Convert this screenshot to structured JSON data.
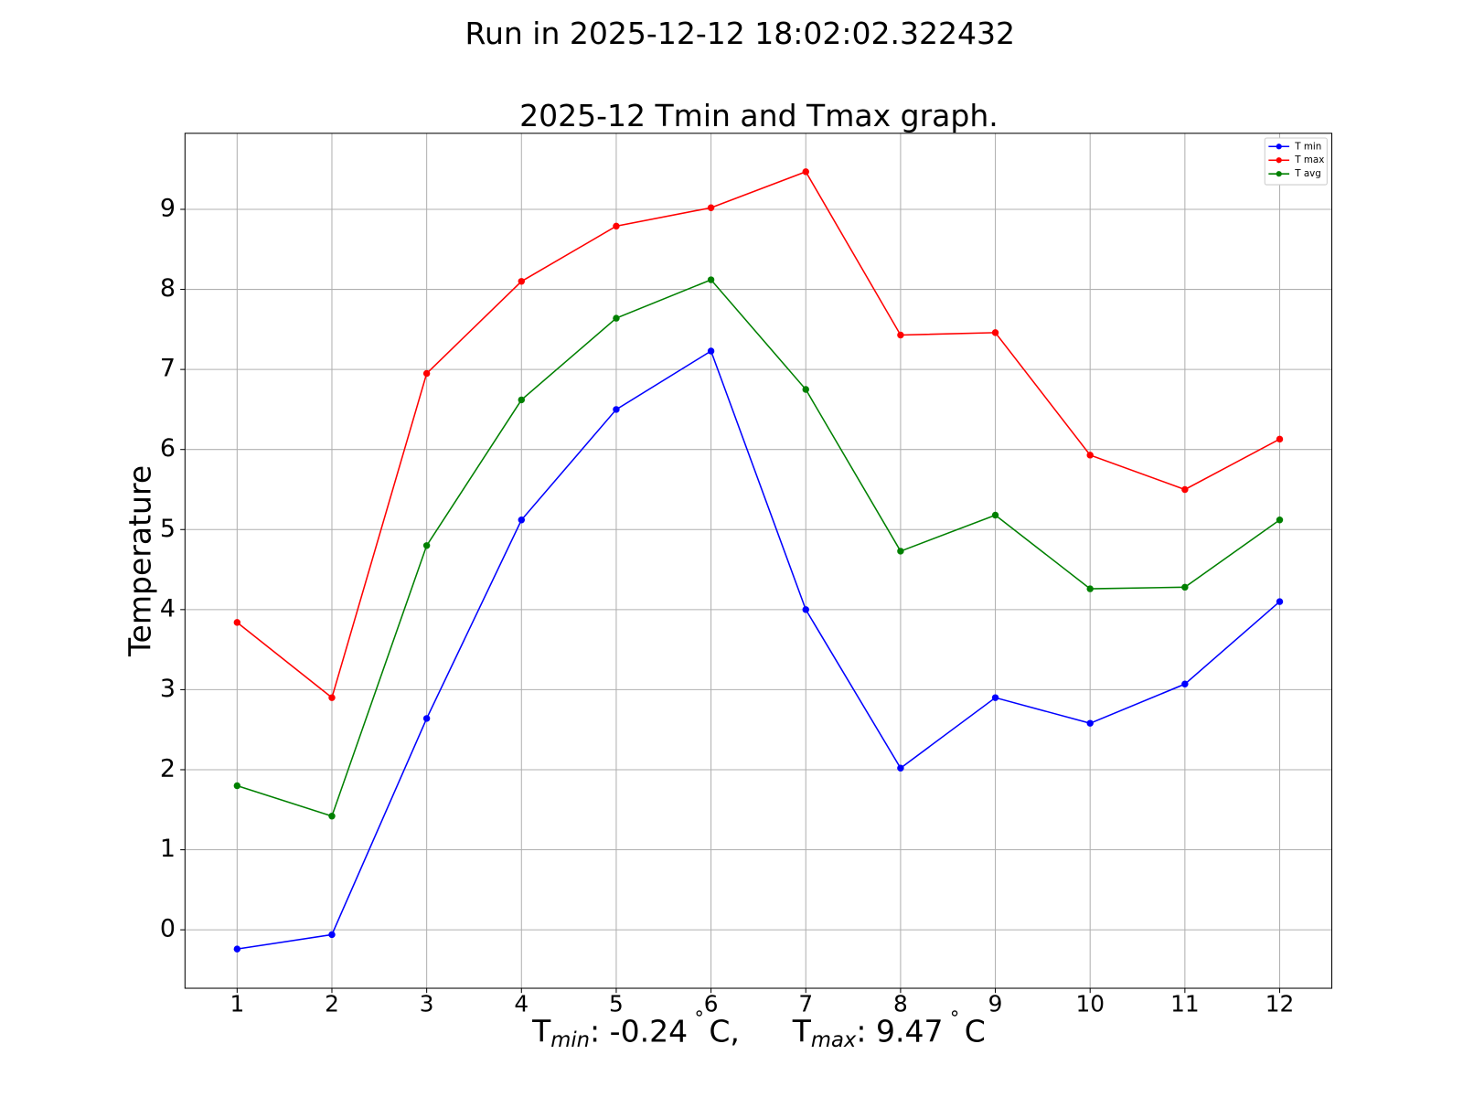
{
  "chart_data": {
    "type": "line",
    "suptitle": "Run in 2025-12-12 18:02:02.322432",
    "title": "2025-12 Tmin and Tmax graph.",
    "ylabel": "Temperature",
    "xlabel_parts": [
      "T",
      "min",
      ": -0.24",
      "∘",
      "C,",
      "T",
      "max",
      ": 9.47",
      "∘",
      "C"
    ],
    "x": [
      1,
      2,
      3,
      4,
      5,
      6,
      7,
      8,
      9,
      10,
      11,
      12
    ],
    "series": [
      {
        "name": "T min",
        "color": "#0000ff",
        "values": [
          -0.24,
          -0.06,
          2.64,
          5.12,
          6.5,
          7.23,
          4.0,
          2.02,
          2.9,
          2.58,
          3.07,
          4.1
        ]
      },
      {
        "name": "T max",
        "color": "#ff0000",
        "values": [
          3.84,
          2.9,
          6.95,
          8.1,
          8.79,
          9.02,
          9.47,
          7.43,
          7.46,
          5.93,
          5.5,
          6.13
        ]
      },
      {
        "name": "T avg",
        "color": "#008000",
        "values": [
          1.8,
          1.42,
          4.8,
          6.62,
          7.64,
          8.12,
          6.75,
          4.73,
          5.18,
          4.26,
          4.28,
          5.12
        ]
      }
    ],
    "xlim": [
      0.45,
      12.55
    ],
    "xticks": [
      1,
      2,
      3,
      4,
      5,
      6,
      7,
      8,
      9,
      10,
      11,
      12
    ],
    "ylim": [
      -0.73,
      9.95
    ],
    "yticks": [
      0,
      1,
      2,
      3,
      4,
      5,
      6,
      7,
      8,
      9
    ],
    "grid": true,
    "legend": "upper right"
  }
}
